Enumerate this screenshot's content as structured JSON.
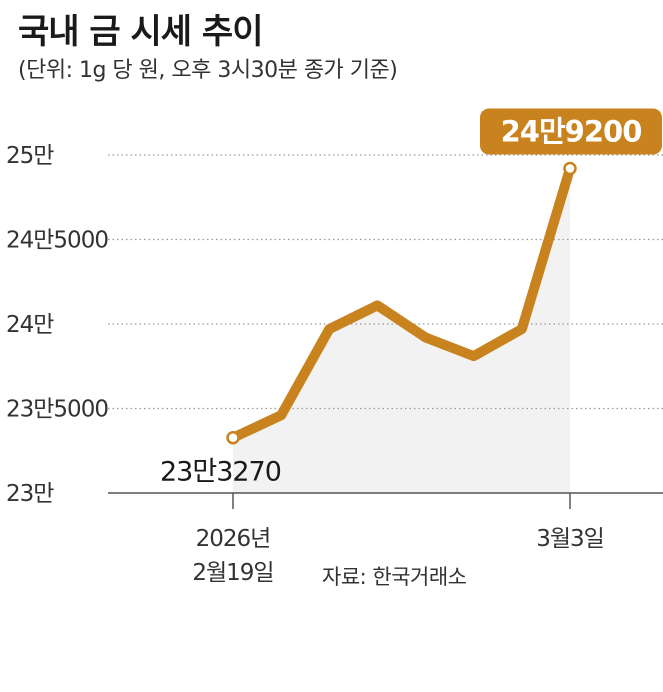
{
  "header": {
    "title": "국내 금 시세 추이",
    "subtitle": "(단위: 1g 당 원, 오후 3시30분 종가 기준)"
  },
  "source": "자료: 한국거래소",
  "colors": {
    "line": "#c8821e",
    "label_box": "#c8821e",
    "area": "#f2f2f2",
    "grid": "#9a9a9a",
    "axis": "#555555"
  },
  "chart_data": {
    "type": "line",
    "title": "국내 금 시세 추이",
    "subtitle": "(단위: 1g 당 원, 오후 3시30분 종가 기준)",
    "ylim": [
      230000,
      250000
    ],
    "y_ticks": [
      {
        "value": 230000,
        "label": "23만"
      },
      {
        "value": 235000,
        "label": "23만5000"
      },
      {
        "value": 240000,
        "label": "24만"
      },
      {
        "value": 245000,
        "label": "24만5000"
      },
      {
        "value": 250000,
        "label": "25만"
      }
    ],
    "x_ticks": [
      {
        "index": 0,
        "lines": [
          "2026년",
          "2월19일"
        ]
      },
      {
        "index": 7,
        "lines": [
          "3월3일"
        ]
      }
    ],
    "grid": true,
    "area_fill": true,
    "series": [
      {
        "values": [
          233270,
          234600,
          239700,
          241100,
          239200,
          238100,
          239700,
          249200
        ]
      }
    ],
    "annotations": [
      {
        "index": 0,
        "label": "23만3270",
        "highlight": false
      },
      {
        "index": 7,
        "label": "24만9200",
        "highlight": true
      }
    ]
  }
}
